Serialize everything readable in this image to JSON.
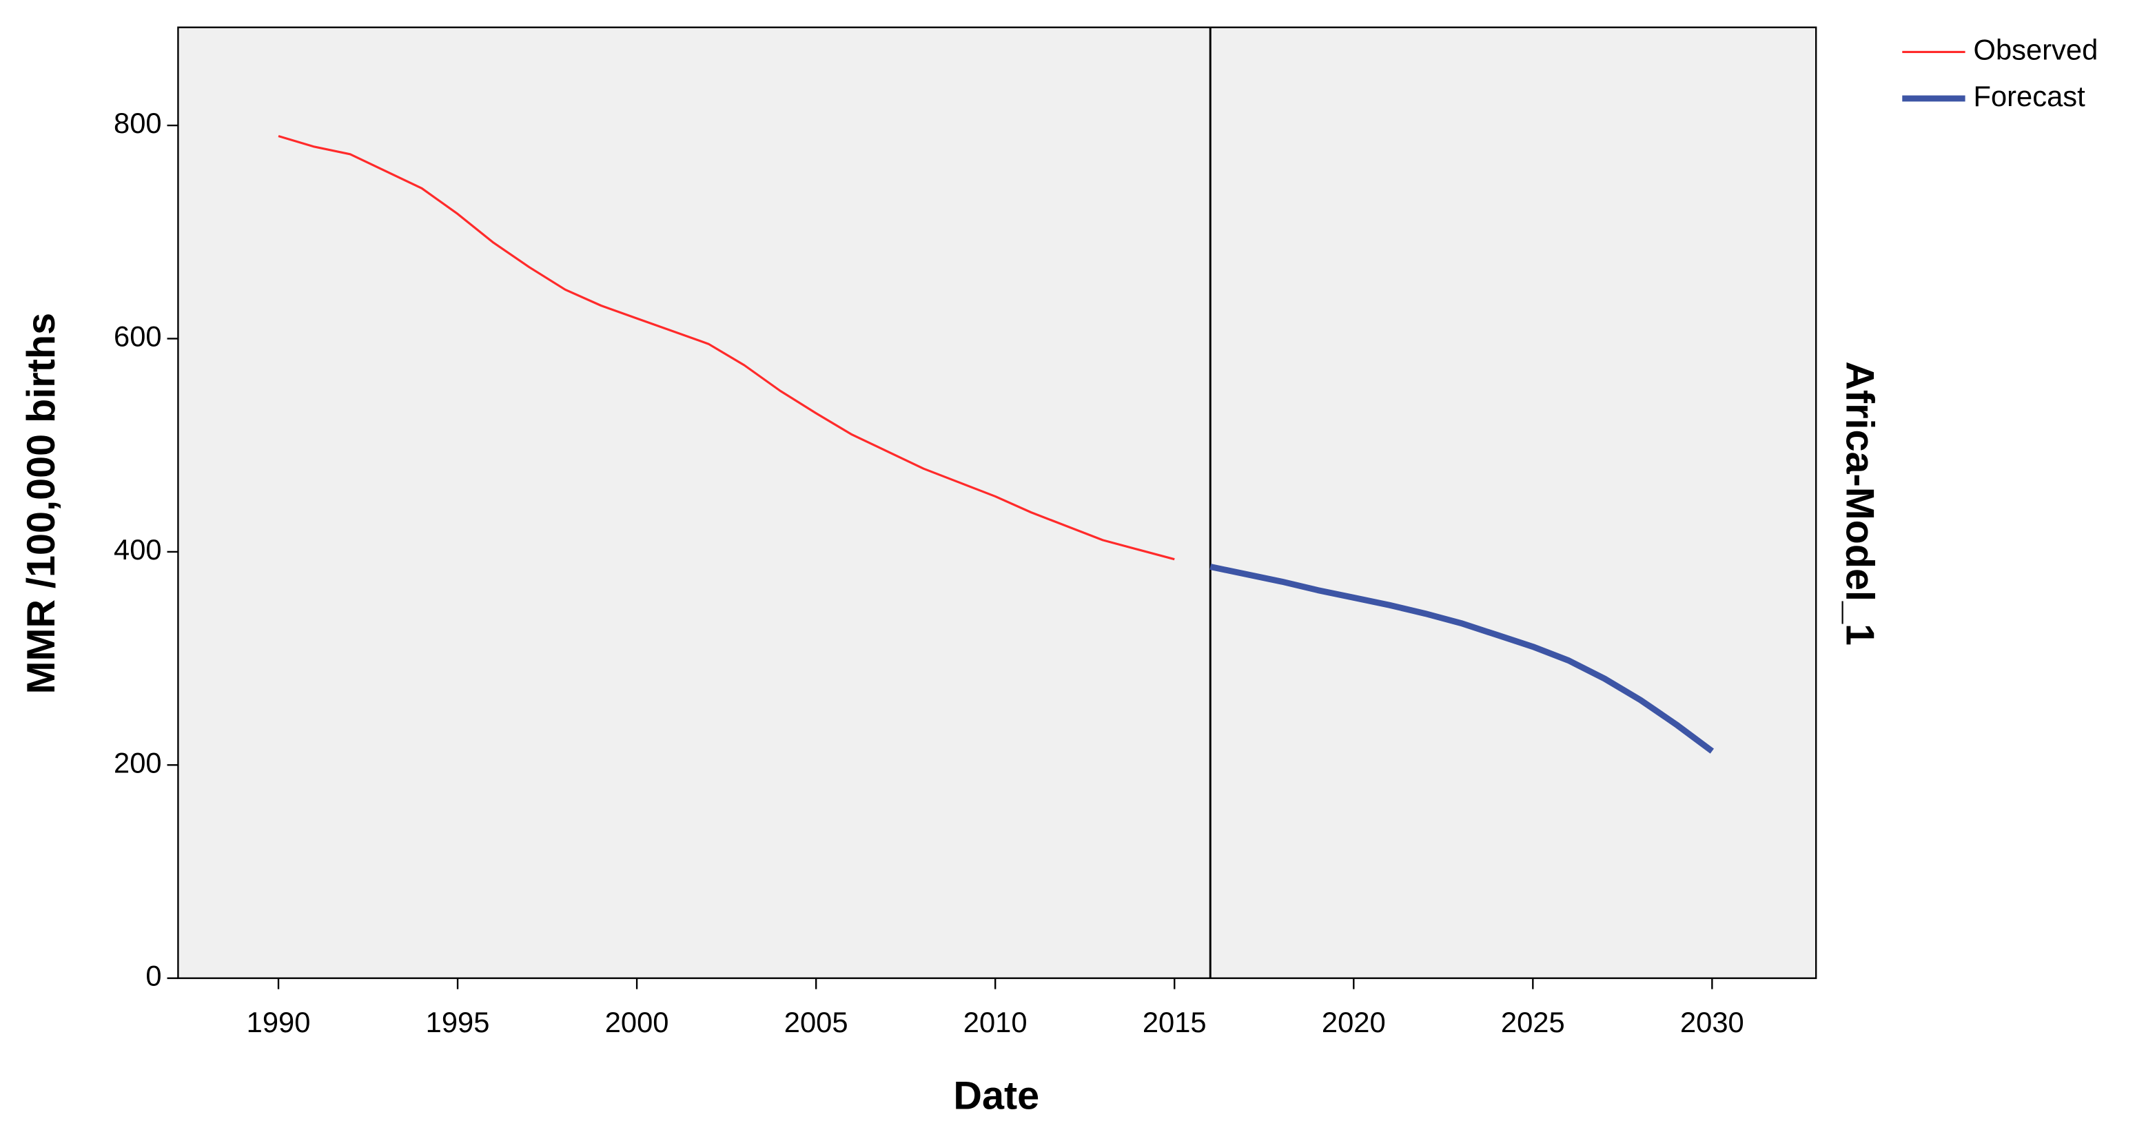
{
  "chart_data": {
    "type": "line",
    "x_label": "Date",
    "y_label": "MMR /100,000 births",
    "panel_label": "Africa-Model_1",
    "x": [
      1990,
      1991,
      1992,
      1993,
      1994,
      1995,
      1996,
      1997,
      1998,
      1999,
      2000,
      2001,
      2002,
      2003,
      2004,
      2005,
      2006,
      2007,
      2008,
      2009,
      2010,
      2011,
      2012,
      2013,
      2014,
      2015,
      2016,
      2017,
      2018,
      2019,
      2020,
      2021,
      2022,
      2023,
      2024,
      2025,
      2026,
      2027,
      2028,
      2029,
      2030
    ],
    "series": [
      {
        "name": "Observed",
        "color": "#ff2a2a",
        "width": 1.6,
        "values": [
          790,
          780,
          773,
          757,
          741,
          717,
          690,
          667,
          646,
          631,
          619,
          607,
          595,
          575,
          551,
          530,
          510,
          494,
          478,
          465,
          452,
          437,
          424,
          411,
          402,
          393,
          null,
          null,
          null,
          null,
          null,
          null,
          null,
          null,
          null,
          null,
          null,
          null,
          null,
          null,
          null
        ]
      },
      {
        "name": "Forecast",
        "color": "#3d55a5",
        "width": 4.5,
        "values": [
          null,
          null,
          null,
          null,
          null,
          null,
          null,
          null,
          null,
          null,
          null,
          null,
          null,
          null,
          null,
          null,
          null,
          null,
          null,
          null,
          null,
          null,
          null,
          null,
          null,
          null,
          386,
          379,
          372,
          364,
          357,
          350,
          342,
          333,
          322,
          311,
          298,
          281,
          261,
          238,
          213
        ]
      }
    ],
    "reference_line_x": 2016,
    "xlim": [
      1987.2,
      2032.9
    ],
    "ylim": [
      0,
      892
    ],
    "xticks": [
      1990,
      1995,
      2000,
      2005,
      2010,
      2015,
      2020,
      2025,
      2030
    ],
    "yticks": [
      0,
      200,
      400,
      600,
      800
    ],
    "grid": false,
    "background": "#f0f0f0",
    "legend": "outside-top-right"
  }
}
